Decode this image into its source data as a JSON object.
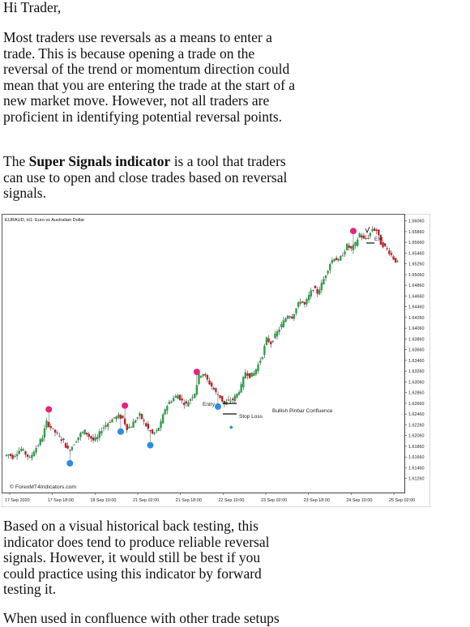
{
  "greeting": "Hi Trader,",
  "paragraphs": {
    "p1": "Most traders use reversals as a means to enter a trade. This is because opening a trade on the reversal of the trend or momentum direction could mean that you are entering the trade at the start of a new market move. However, not all traders are proficient in identifying potential reversal points.",
    "p2_pre": "The ",
    "p2_bold": "Super Signals indicator",
    "p2_post": " is a tool that traders can use to open and close trades based on reversal signals.",
    "p3": "Based on a visual historical back testing, this indicator does tend to produce reliable reversal signals. However, it would still be best if you could practice using this indicator by forward testing it.",
    "p4": "When used in confluence with other trade setups"
  },
  "chart": {
    "header": "EURAUD, H1:  Euro vs Australian Dollar",
    "watermark": "© ForexMT4Indicators.com",
    "annotations": {
      "entry": "Entry",
      "stop_loss": "Stop Loss",
      "confluence": "Bullish Pinbar Confluence",
      "exit": "Exit"
    },
    "colors": {
      "bull": "#2e9e48",
      "bear": "#c0212b",
      "sell_signal": "#e6237f",
      "buy_signal": "#2b8de0"
    }
  },
  "chart_data": {
    "type": "candlestick",
    "title": "EURAUD, H1:  Euro vs Australian Dollar",
    "x_tick_labels": [
      "17 Sep 2020",
      "17 Sep 18:00",
      "18 Sep 10:00",
      "21 Sep 02:00",
      "21 Sep 18:00",
      "22 Sep 10:00",
      "23 Sep 02:00",
      "23 Sep 18:00",
      "24 Sep 10:00",
      "25 Sep 02:00"
    ],
    "y_tick_labels": [
      "1.66060",
      "1.65860",
      "1.65660",
      "1.65460",
      "1.65260",
      "1.65060",
      "1.64860",
      "1.64660",
      "1.64460",
      "1.64260",
      "1.64060",
      "1.63860",
      "1.63660",
      "1.63460",
      "1.63260",
      "1.63060",
      "1.62860",
      "1.62660",
      "1.62460",
      "1.62260",
      "1.62060",
      "1.61860",
      "1.61660",
      "1.61460",
      "1.61260"
    ],
    "ylim": [
      1.6115,
      1.6613
    ],
    "price_path": [
      1.6168,
      1.6171,
      1.6166,
      1.6175,
      1.6181,
      1.6172,
      1.6163,
      1.6178,
      1.6189,
      1.6204,
      1.6231,
      1.6221,
      1.6212,
      1.6203,
      1.6195,
      1.6179,
      1.6186,
      1.6198,
      1.6209,
      1.6214,
      1.6205,
      1.6197,
      1.6202,
      1.6218,
      1.6226,
      1.6233,
      1.6239,
      1.6242,
      1.6238,
      1.622,
      1.6224,
      1.6236,
      1.6244,
      1.6231,
      1.6218,
      1.6209,
      1.6214,
      1.6229,
      1.6256,
      1.6268,
      1.6276,
      1.6281,
      1.627,
      1.6264,
      1.6275,
      1.6286,
      1.6318,
      1.6322,
      1.6309,
      1.6298,
      1.6286,
      1.6278,
      1.6264,
      1.6271,
      1.6273,
      1.6283,
      1.6298,
      1.6325,
      1.6317,
      1.6322,
      1.6338,
      1.6356,
      1.6386,
      1.6378,
      1.6392,
      1.6405,
      1.6418,
      1.6431,
      1.6427,
      1.6443,
      1.6458,
      1.6449,
      1.6466,
      1.6481,
      1.6472,
      1.6488,
      1.6507,
      1.6527,
      1.6538,
      1.6531,
      1.6544,
      1.656,
      1.6553,
      1.6563,
      1.6582,
      1.6571,
      1.6576,
      1.6591,
      1.6588,
      1.6564,
      1.6557,
      1.6548,
      1.6536,
      1.6527
    ],
    "signals": [
      {
        "kind": "sell",
        "at_index": 10
      },
      {
        "kind": "buy",
        "at_index": 15
      },
      {
        "kind": "buy",
        "at_index": 27
      },
      {
        "kind": "sell",
        "at_index": 28
      },
      {
        "kind": "buy",
        "at_index": 34
      },
      {
        "kind": "sell",
        "at_index": 45
      },
      {
        "kind": "buy",
        "at_index": 50
      },
      {
        "kind": "sell",
        "at_index": 82
      }
    ]
  }
}
